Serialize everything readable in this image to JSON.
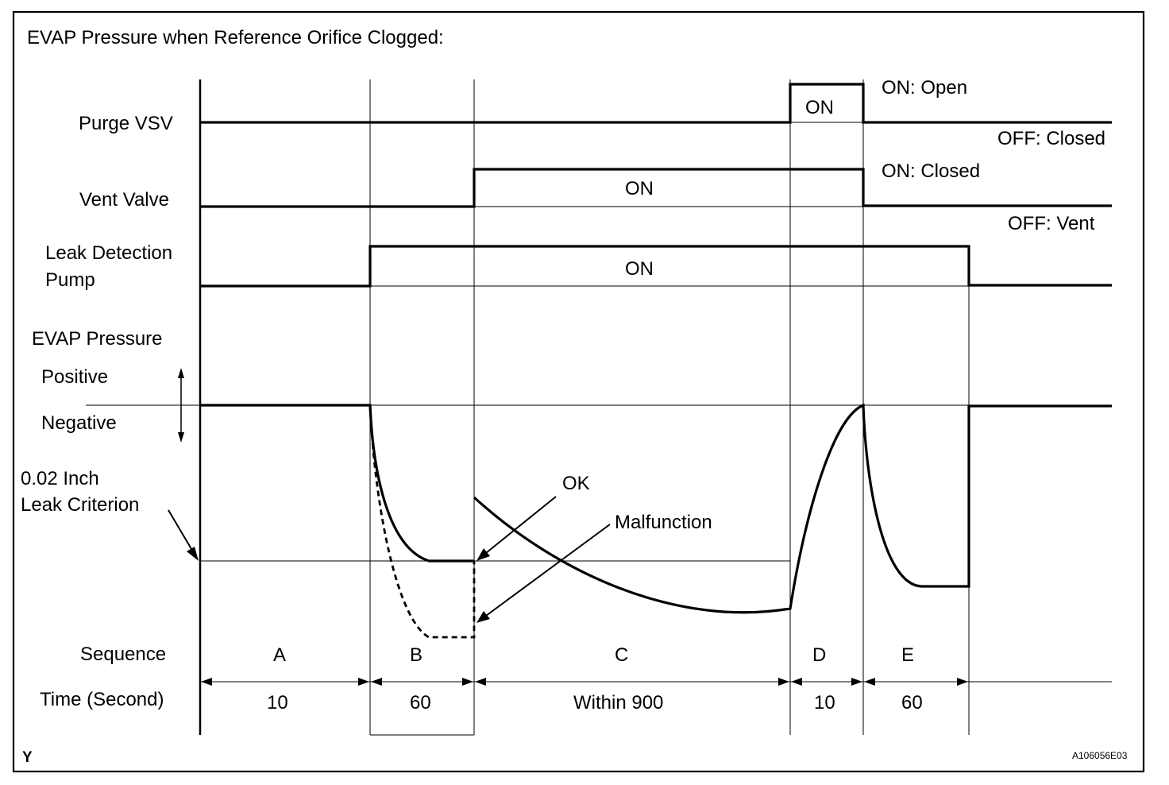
{
  "title": "EVAP Pressure when Reference Orifice Clogged:",
  "signals": {
    "purge_vsv": {
      "label": "Purge VSV",
      "on_text": "ON",
      "on_state": "ON: Open",
      "off_state": "OFF: Closed"
    },
    "vent_valve": {
      "label": "Vent Valve",
      "on_text": "ON",
      "on_state": "ON: Closed",
      "off_state": "OFF: Vent"
    },
    "leak_pump": {
      "label_line1": "Leak Detection",
      "label_line2": "Pump",
      "on_text": "ON"
    }
  },
  "pressure": {
    "label": "EVAP Pressure",
    "positive": "Positive",
    "negative": "Negative",
    "criterion_line1": "0.02 Inch",
    "criterion_line2": "Leak Criterion",
    "ok": "OK",
    "malfunction": "Malfunction"
  },
  "sequence": {
    "label": "Sequence",
    "phases": [
      "A",
      "B",
      "C",
      "D",
      "E"
    ]
  },
  "time": {
    "label": "Time (Second)",
    "values": [
      "10",
      "60",
      "Within 900",
      "10",
      "60"
    ]
  },
  "footer": {
    "corner_mark": "Y",
    "figure_id": "A106056E03"
  }
}
